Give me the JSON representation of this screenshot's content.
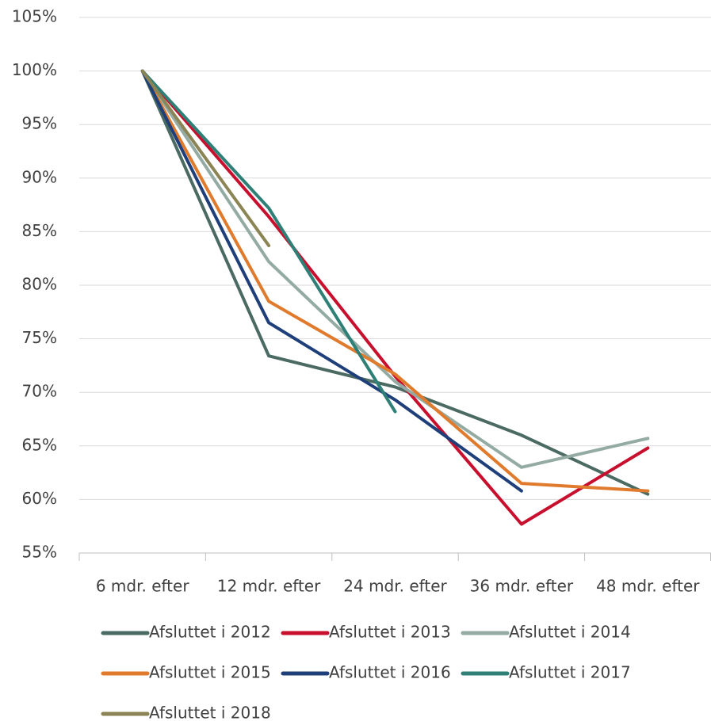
{
  "chart_data": {
    "type": "line",
    "categories": [
      "6 mdr. efter",
      "12 mdr. efter",
      "24 mdr. efter",
      "36 mdr. efter",
      "48 mdr. efter"
    ],
    "series": [
      {
        "name": "Afsluttet i 2012",
        "color": "#4a6a62",
        "values": [
          100,
          73.4,
          70.5,
          66.0,
          60.5
        ]
      },
      {
        "name": "Afsluttet i 2013",
        "color": "#c8102e",
        "values": [
          100,
          86.4,
          71.5,
          57.7,
          64.8
        ]
      },
      {
        "name": "Afsluttet i 2014",
        "color": "#94aba4",
        "values": [
          100,
          82.2,
          71.0,
          63.0,
          65.7
        ]
      },
      {
        "name": "Afsluttet i 2015",
        "color": "#e07b2e",
        "values": [
          100,
          78.5,
          71.7,
          61.5,
          60.8
        ]
      },
      {
        "name": "Afsluttet i 2016",
        "color": "#1f3f7a",
        "values": [
          100,
          76.5,
          69.3,
          60.8,
          null
        ]
      },
      {
        "name": "Afsluttet i 2017",
        "color": "#2e8077",
        "values": [
          100,
          87.2,
          68.2,
          null,
          null
        ]
      },
      {
        "name": "Afsluttet i 2018",
        "color": "#8b8455",
        "values": [
          100,
          83.7,
          null,
          null,
          null
        ]
      }
    ],
    "ylim": [
      55,
      105
    ],
    "yticks": [
      {
        "value": 55,
        "label": "55%"
      },
      {
        "value": 60,
        "label": "60%"
      },
      {
        "value": 65,
        "label": "65%"
      },
      {
        "value": 70,
        "label": "70%"
      },
      {
        "value": 75,
        "label": "75%"
      },
      {
        "value": 80,
        "label": "80%"
      },
      {
        "value": 85,
        "label": "85%"
      },
      {
        "value": 90,
        "label": "90%"
      },
      {
        "value": 95,
        "label": "95%"
      },
      {
        "value": 100,
        "label": "100%"
      },
      {
        "value": 105,
        "label": "105%"
      }
    ],
    "grid": true
  }
}
